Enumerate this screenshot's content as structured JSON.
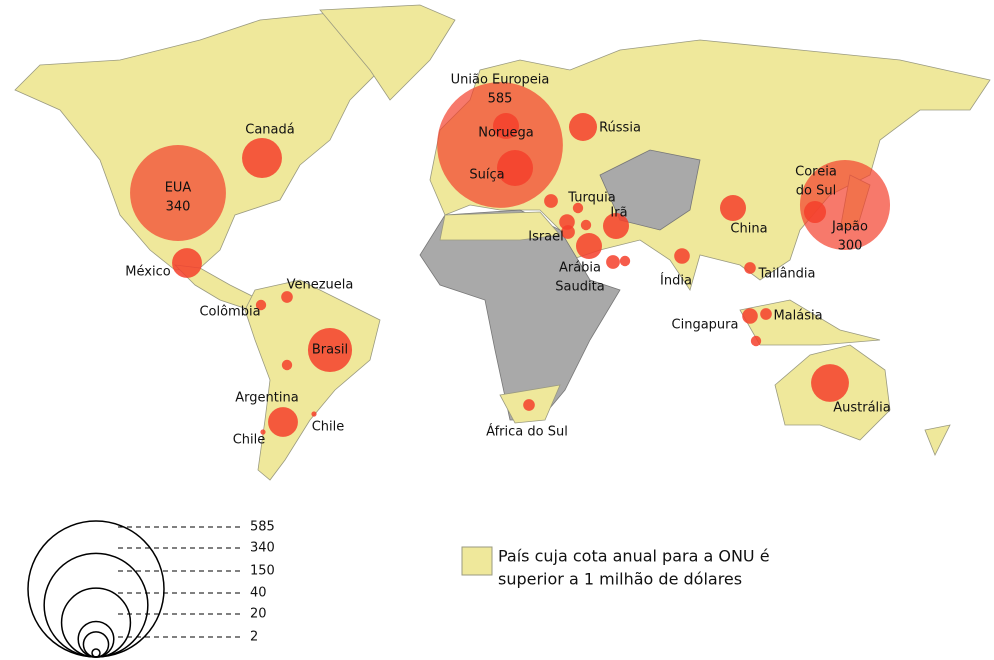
{
  "markers": [
    {
      "label": "Canadá",
      "value": 59
    },
    {
      "label": "EUA",
      "value": 340,
      "value_label": "340"
    },
    {
      "label": "México",
      "value": 33
    },
    {
      "label": "Venezuela",
      "value": 5
    },
    {
      "label": "Colômbia",
      "value": 4
    },
    {
      "label": "Brasil",
      "value": 72
    },
    {
      "label": "Argentina",
      "value": 33
    },
    {
      "label": "Chile",
      "value": 1
    },
    {
      "label": "Chile",
      "value": 1
    },
    {
      "label": "União Europeia",
      "value": 585,
      "value_label": "585"
    },
    {
      "label": "Noruega",
      "value": 25
    },
    {
      "label": "Suíça",
      "value": 48
    },
    {
      "label": "Rússia",
      "value": 29
    },
    {
      "label": "Turquia",
      "value": 7
    },
    {
      "label": "Irã",
      "value": 25
    },
    {
      "label": "Israel",
      "value": 7
    },
    {
      "label": [
        "Arábia",
        "Saudita"
      ],
      "value": 25
    },
    {
      "label": "China",
      "value": 25
    },
    {
      "label": "Índia",
      "value": 9
    },
    {
      "label": "Japão",
      "value": 300,
      "value_label": "300"
    },
    {
      "label": [
        "Coreia",
        "do Sul"
      ],
      "value": 18
    },
    {
      "label": "Tailândia",
      "value": 5
    },
    {
      "label": "Cingapura",
      "value": 9
    },
    {
      "label": "Malásia",
      "value": 5
    },
    {
      "label": "Austrália",
      "value": 53
    },
    {
      "label": "África do Sul",
      "value": 5
    },
    {
      "label": null,
      "value": 9
    },
    {
      "label": null,
      "value": 4
    },
    {
      "label": null,
      "value": 7
    },
    {
      "label": null,
      "value": 4
    },
    {
      "label": null,
      "value": 4
    },
    {
      "label": null,
      "value": 4
    },
    {
      "label": null,
      "value": 4
    }
  ],
  "marker_color": "#f4402c",
  "scale_legend": {
    "values": [
      585,
      340,
      150,
      40,
      20,
      2
    ]
  },
  "land_legend": {
    "color": "#efe89b",
    "lines": [
      "País cuja cota anual para a ONU é",
      "superior a 1 milhão de dólares"
    ]
  }
}
